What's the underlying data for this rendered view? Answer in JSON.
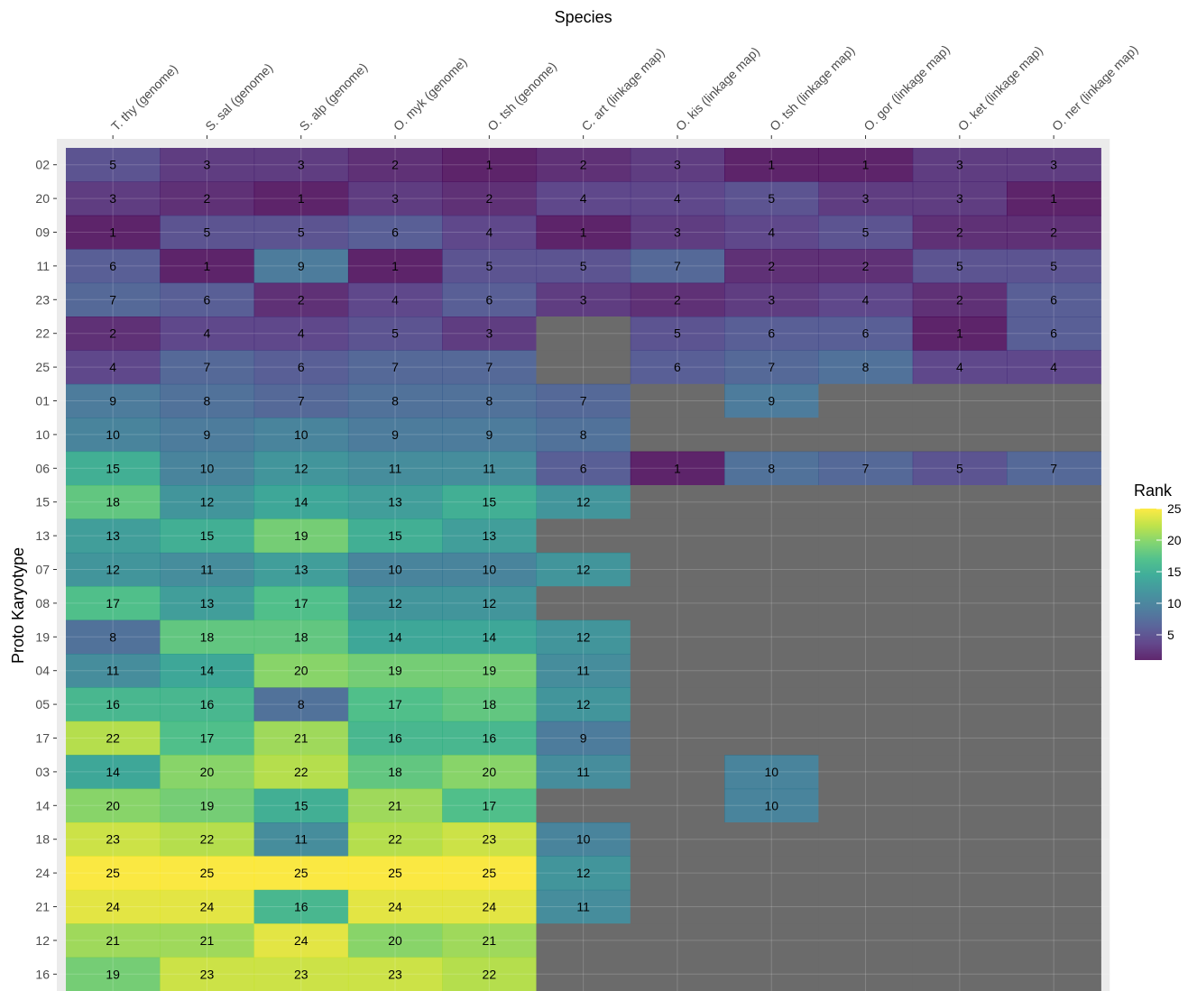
{
  "chart_data": {
    "type": "heatmap",
    "xlabel": "Species",
    "ylabel": "Proto Karyotype",
    "x_position": "top",
    "x": [
      "T. thy (genome)",
      "S. sal (genome)",
      "S. alp (genome)",
      "O. myk (genome)",
      "O. tsh (genome)",
      "C. art (linkage map)",
      "O. kis (linkage map)",
      "O. tsh (linkage map)",
      "O. gor (linkage map)",
      "O. ket (linkage map)",
      "O. ner (linkage map)"
    ],
    "y": [
      "02",
      "20",
      "09",
      "11",
      "23",
      "22",
      "25",
      "01",
      "10",
      "06",
      "15",
      "13",
      "07",
      "08",
      "19",
      "04",
      "05",
      "17",
      "03",
      "14",
      "18",
      "24",
      "21",
      "12",
      "16"
    ],
    "values": [
      [
        5,
        3,
        3,
        2,
        1,
        2,
        3,
        1,
        1,
        3,
        3
      ],
      [
        3,
        2,
        1,
        3,
        2,
        4,
        4,
        5,
        3,
        3,
        1
      ],
      [
        1,
        5,
        5,
        6,
        4,
        1,
        3,
        4,
        5,
        2,
        2
      ],
      [
        6,
        1,
        9,
        1,
        5,
        5,
        7,
        2,
        2,
        5,
        5
      ],
      [
        7,
        6,
        2,
        4,
        6,
        3,
        2,
        3,
        4,
        2,
        6
      ],
      [
        2,
        4,
        4,
        5,
        3,
        null,
        5,
        6,
        6,
        1,
        6
      ],
      [
        4,
        7,
        6,
        7,
        7,
        null,
        6,
        7,
        8,
        4,
        4
      ],
      [
        9,
        8,
        7,
        8,
        8,
        7,
        null,
        9,
        null,
        null,
        null
      ],
      [
        10,
        9,
        10,
        9,
        9,
        8,
        null,
        null,
        null,
        null,
        null
      ],
      [
        15,
        10,
        12,
        11,
        11,
        6,
        1,
        8,
        7,
        5,
        7
      ],
      [
        18,
        12,
        14,
        13,
        15,
        12,
        null,
        null,
        null,
        null,
        null
      ],
      [
        13,
        15,
        19,
        15,
        13,
        null,
        null,
        null,
        null,
        null,
        null
      ],
      [
        12,
        11,
        13,
        10,
        10,
        12,
        null,
        null,
        null,
        null,
        null
      ],
      [
        17,
        13,
        17,
        12,
        12,
        null,
        null,
        null,
        null,
        null,
        null
      ],
      [
        8,
        18,
        18,
        14,
        14,
        12,
        null,
        null,
        null,
        null,
        null
      ],
      [
        11,
        14,
        20,
        19,
        19,
        11,
        null,
        null,
        null,
        null,
        null
      ],
      [
        16,
        16,
        8,
        17,
        18,
        12,
        null,
        null,
        null,
        null,
        null
      ],
      [
        22,
        17,
        21,
        16,
        16,
        9,
        null,
        null,
        null,
        null,
        null
      ],
      [
        14,
        20,
        22,
        18,
        20,
        11,
        null,
        10,
        null,
        null,
        null
      ],
      [
        20,
        19,
        15,
        21,
        17,
        null,
        null,
        10,
        null,
        null,
        null
      ],
      [
        23,
        22,
        11,
        22,
        23,
        10,
        null,
        null,
        null,
        null,
        null
      ],
      [
        25,
        25,
        25,
        25,
        25,
        12,
        null,
        null,
        null,
        null,
        null
      ],
      [
        24,
        24,
        16,
        24,
        24,
        11,
        null,
        null,
        null,
        null,
        null
      ],
      [
        21,
        21,
        24,
        20,
        21,
        null,
        null,
        null,
        null,
        null,
        null
      ],
      [
        19,
        23,
        23,
        23,
        22,
        null,
        null,
        null,
        null,
        null,
        null
      ]
    ],
    "color_scale": "viridis",
    "value_range": [
      1,
      25
    ],
    "na_color": "#6b6b6b",
    "panel_background": "#ebebeb",
    "legend": {
      "title": "Rank",
      "ticks": [
        25,
        20,
        15,
        10,
        5
      ],
      "placement": "right"
    }
  }
}
